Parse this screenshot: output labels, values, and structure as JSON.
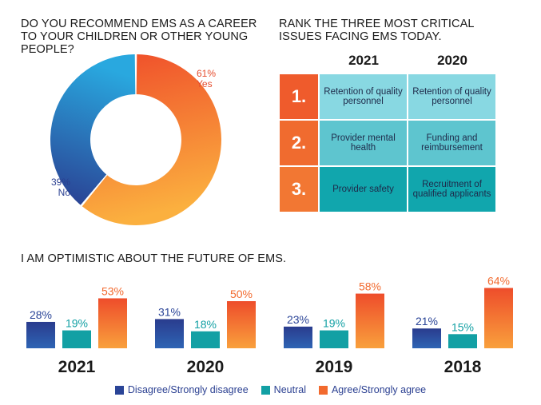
{
  "donut": {
    "title": "Do you recommend EMS as a career to your children or other young people?",
    "yes_pct": "61%",
    "yes_label": "Yes",
    "no_pct": "39%",
    "no_label": "No"
  },
  "ranking": {
    "title": "Rank the three most critical issues facing EMS today.",
    "years": [
      "2021",
      "2020"
    ],
    "rows": [
      {
        "rank": "1.",
        "a": "Retention of quality personnel",
        "b": "Retention of quality personnel"
      },
      {
        "rank": "2.",
        "a": "Provider mental health",
        "b": "Funding and reimbursement"
      },
      {
        "rank": "3.",
        "a": "Provider safety",
        "b": "Recruitment of qualified applicants"
      }
    ]
  },
  "optimism": {
    "title": "I am optimistic about the future of EMS."
  },
  "legend": {
    "disagree": "Disagree/Strongly disagree",
    "neutral": "Neutral",
    "agree": "Agree/Strongly agree"
  },
  "colors": {
    "disagree": "#2a4497",
    "neutral": "#12a0a4",
    "agree": "#f26a2e",
    "yes_start": "#ef4b2a",
    "yes_end": "#fbb03f",
    "no_start": "#2a3d90",
    "no_end": "#29a8df"
  },
  "chart_data": [
    {
      "type": "pie",
      "title": "Do you recommend EMS as a career to your children or other young people?",
      "categories": [
        "Yes",
        "No"
      ],
      "values": [
        61,
        39
      ],
      "style": "donut"
    },
    {
      "type": "bar",
      "title": "I am optimistic about the future of EMS.",
      "categories": [
        "2021",
        "2020",
        "2019",
        "2018"
      ],
      "series": [
        {
          "name": "Disagree/Strongly disagree",
          "values": [
            28,
            31,
            23,
            21
          ],
          "labels": [
            "28%",
            "31%",
            "23%",
            "21%"
          ]
        },
        {
          "name": "Neutral",
          "values": [
            19,
            18,
            19,
            15
          ],
          "labels": [
            "19%",
            "18%",
            "19%",
            "15%"
          ]
        },
        {
          "name": "Agree/Strongly agree",
          "values": [
            53,
            50,
            58,
            64
          ],
          "labels": [
            "53%",
            "50%",
            "58%",
            "64%"
          ]
        }
      ],
      "ylim": [
        0,
        70
      ],
      "legend": "bottom"
    }
  ]
}
